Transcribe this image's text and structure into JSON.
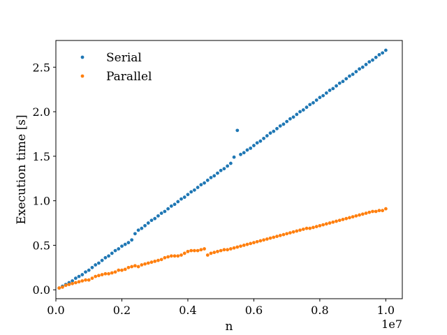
{
  "chart_data": {
    "type": "scatter",
    "xlabel": "n",
    "ylabel": "Execution time [s]",
    "x_offset_text": "1e7",
    "xlim": [
      0.0,
      1.05
    ],
    "ylim": [
      -0.1,
      2.8
    ],
    "x_ticks": [
      0.0,
      0.2,
      0.4,
      0.6,
      0.8,
      1.0
    ],
    "x_tick_labels": [
      "0.0",
      "0.2",
      "0.4",
      "0.6",
      "0.8",
      "1.0"
    ],
    "y_ticks": [
      0.0,
      0.5,
      1.0,
      1.5,
      2.0,
      2.5
    ],
    "y_tick_labels": [
      "0.0",
      "0.5",
      "1.0",
      "1.5",
      "2.0",
      "2.5"
    ],
    "grid": false,
    "legend_placement": "upper-left",
    "series": [
      {
        "name": "Serial",
        "color": "#1f77b4",
        "points": [
          [
            0.01,
            0.02
          ],
          [
            0.02,
            0.04
          ],
          [
            0.03,
            0.06
          ],
          [
            0.04,
            0.08
          ],
          [
            0.05,
            0.1
          ],
          [
            0.06,
            0.13
          ],
          [
            0.07,
            0.15
          ],
          [
            0.08,
            0.17
          ],
          [
            0.09,
            0.2
          ],
          [
            0.1,
            0.22
          ],
          [
            0.11,
            0.25
          ],
          [
            0.12,
            0.28
          ],
          [
            0.13,
            0.3
          ],
          [
            0.14,
            0.33
          ],
          [
            0.15,
            0.36
          ],
          [
            0.16,
            0.38
          ],
          [
            0.17,
            0.41
          ],
          [
            0.18,
            0.44
          ],
          [
            0.19,
            0.46
          ],
          [
            0.2,
            0.49
          ],
          [
            0.21,
            0.51
          ],
          [
            0.22,
            0.53
          ],
          [
            0.23,
            0.56
          ],
          [
            0.24,
            0.63
          ],
          [
            0.25,
            0.67
          ],
          [
            0.26,
            0.69
          ],
          [
            0.27,
            0.72
          ],
          [
            0.28,
            0.75
          ],
          [
            0.29,
            0.78
          ],
          [
            0.3,
            0.8
          ],
          [
            0.31,
            0.83
          ],
          [
            0.32,
            0.86
          ],
          [
            0.33,
            0.88
          ],
          [
            0.34,
            0.91
          ],
          [
            0.35,
            0.94
          ],
          [
            0.36,
            0.96
          ],
          [
            0.37,
            0.99
          ],
          [
            0.38,
            1.02
          ],
          [
            0.39,
            1.04
          ],
          [
            0.4,
            1.07
          ],
          [
            0.41,
            1.1
          ],
          [
            0.42,
            1.12
          ],
          [
            0.43,
            1.15
          ],
          [
            0.44,
            1.18
          ],
          [
            0.45,
            1.2
          ],
          [
            0.46,
            1.23
          ],
          [
            0.47,
            1.26
          ],
          [
            0.48,
            1.28
          ],
          [
            0.49,
            1.31
          ],
          [
            0.5,
            1.34
          ],
          [
            0.51,
            1.36
          ],
          [
            0.52,
            1.39
          ],
          [
            0.53,
            1.42
          ],
          [
            0.54,
            1.49
          ],
          [
            0.55,
            1.79
          ],
          [
            0.56,
            1.52
          ],
          [
            0.57,
            1.54
          ],
          [
            0.58,
            1.57
          ],
          [
            0.59,
            1.59
          ],
          [
            0.6,
            1.62
          ],
          [
            0.61,
            1.65
          ],
          [
            0.62,
            1.67
          ],
          [
            0.63,
            1.7
          ],
          [
            0.64,
            1.73
          ],
          [
            0.65,
            1.76
          ],
          [
            0.66,
            1.78
          ],
          [
            0.67,
            1.81
          ],
          [
            0.68,
            1.84
          ],
          [
            0.69,
            1.86
          ],
          [
            0.7,
            1.89
          ],
          [
            0.71,
            1.92
          ],
          [
            0.72,
            1.94
          ],
          [
            0.73,
            1.97
          ],
          [
            0.74,
            2.0
          ],
          [
            0.75,
            2.02
          ],
          [
            0.76,
            2.05
          ],
          [
            0.77,
            2.08
          ],
          [
            0.78,
            2.1
          ],
          [
            0.79,
            2.13
          ],
          [
            0.8,
            2.16
          ],
          [
            0.81,
            2.18
          ],
          [
            0.82,
            2.21
          ],
          [
            0.83,
            2.24
          ],
          [
            0.84,
            2.26
          ],
          [
            0.85,
            2.29
          ],
          [
            0.86,
            2.32
          ],
          [
            0.87,
            2.34
          ],
          [
            0.88,
            2.37
          ],
          [
            0.89,
            2.4
          ],
          [
            0.9,
            2.42
          ],
          [
            0.91,
            2.45
          ],
          [
            0.92,
            2.48
          ],
          [
            0.93,
            2.5
          ],
          [
            0.94,
            2.53
          ],
          [
            0.95,
            2.56
          ],
          [
            0.96,
            2.58
          ],
          [
            0.97,
            2.61
          ],
          [
            0.98,
            2.64
          ],
          [
            0.99,
            2.66
          ],
          [
            1.0,
            2.69
          ]
        ]
      },
      {
        "name": "Parallel",
        "color": "#ff7f0e",
        "points": [
          [
            0.01,
            0.02
          ],
          [
            0.02,
            0.03
          ],
          [
            0.03,
            0.05
          ],
          [
            0.04,
            0.06
          ],
          [
            0.05,
            0.07
          ],
          [
            0.06,
            0.08
          ],
          [
            0.07,
            0.09
          ],
          [
            0.08,
            0.1
          ],
          [
            0.09,
            0.11
          ],
          [
            0.1,
            0.11
          ],
          [
            0.11,
            0.13
          ],
          [
            0.12,
            0.15
          ],
          [
            0.13,
            0.16
          ],
          [
            0.14,
            0.17
          ],
          [
            0.15,
            0.18
          ],
          [
            0.16,
            0.18
          ],
          [
            0.17,
            0.19
          ],
          [
            0.18,
            0.2
          ],
          [
            0.19,
            0.22
          ],
          [
            0.2,
            0.22
          ],
          [
            0.21,
            0.23
          ],
          [
            0.22,
            0.25
          ],
          [
            0.23,
            0.26
          ],
          [
            0.24,
            0.27
          ],
          [
            0.25,
            0.26
          ],
          [
            0.26,
            0.28
          ],
          [
            0.27,
            0.29
          ],
          [
            0.28,
            0.3
          ],
          [
            0.29,
            0.31
          ],
          [
            0.3,
            0.32
          ],
          [
            0.31,
            0.33
          ],
          [
            0.32,
            0.34
          ],
          [
            0.33,
            0.36
          ],
          [
            0.34,
            0.37
          ],
          [
            0.35,
            0.38
          ],
          [
            0.36,
            0.38
          ],
          [
            0.37,
            0.38
          ],
          [
            0.38,
            0.39
          ],
          [
            0.39,
            0.41
          ],
          [
            0.4,
            0.43
          ],
          [
            0.41,
            0.44
          ],
          [
            0.42,
            0.44
          ],
          [
            0.43,
            0.44
          ],
          [
            0.44,
            0.45
          ],
          [
            0.45,
            0.46
          ],
          [
            0.46,
            0.39
          ],
          [
            0.47,
            0.41
          ],
          [
            0.48,
            0.42
          ],
          [
            0.49,
            0.43
          ],
          [
            0.5,
            0.44
          ],
          [
            0.51,
            0.45
          ],
          [
            0.52,
            0.45
          ],
          [
            0.53,
            0.46
          ],
          [
            0.54,
            0.47
          ],
          [
            0.55,
            0.48
          ],
          [
            0.56,
            0.49
          ],
          [
            0.57,
            0.5
          ],
          [
            0.58,
            0.51
          ],
          [
            0.59,
            0.52
          ],
          [
            0.6,
            0.53
          ],
          [
            0.61,
            0.54
          ],
          [
            0.62,
            0.55
          ],
          [
            0.63,
            0.56
          ],
          [
            0.64,
            0.57
          ],
          [
            0.65,
            0.58
          ],
          [
            0.66,
            0.59
          ],
          [
            0.67,
            0.6
          ],
          [
            0.68,
            0.61
          ],
          [
            0.69,
            0.62
          ],
          [
            0.7,
            0.63
          ],
          [
            0.71,
            0.64
          ],
          [
            0.72,
            0.65
          ],
          [
            0.73,
            0.66
          ],
          [
            0.74,
            0.67
          ],
          [
            0.75,
            0.68
          ],
          [
            0.76,
            0.69
          ],
          [
            0.77,
            0.69
          ],
          [
            0.78,
            0.7
          ],
          [
            0.79,
            0.71
          ],
          [
            0.8,
            0.72
          ],
          [
            0.81,
            0.73
          ],
          [
            0.82,
            0.74
          ],
          [
            0.83,
            0.75
          ],
          [
            0.84,
            0.76
          ],
          [
            0.85,
            0.77
          ],
          [
            0.86,
            0.78
          ],
          [
            0.87,
            0.79
          ],
          [
            0.88,
            0.8
          ],
          [
            0.89,
            0.81
          ],
          [
            0.9,
            0.82
          ],
          [
            0.91,
            0.83
          ],
          [
            0.92,
            0.84
          ],
          [
            0.93,
            0.85
          ],
          [
            0.94,
            0.86
          ],
          [
            0.95,
            0.87
          ],
          [
            0.96,
            0.88
          ],
          [
            0.97,
            0.88
          ],
          [
            0.98,
            0.89
          ],
          [
            0.99,
            0.89
          ],
          [
            1.0,
            0.91
          ]
        ]
      }
    ]
  }
}
